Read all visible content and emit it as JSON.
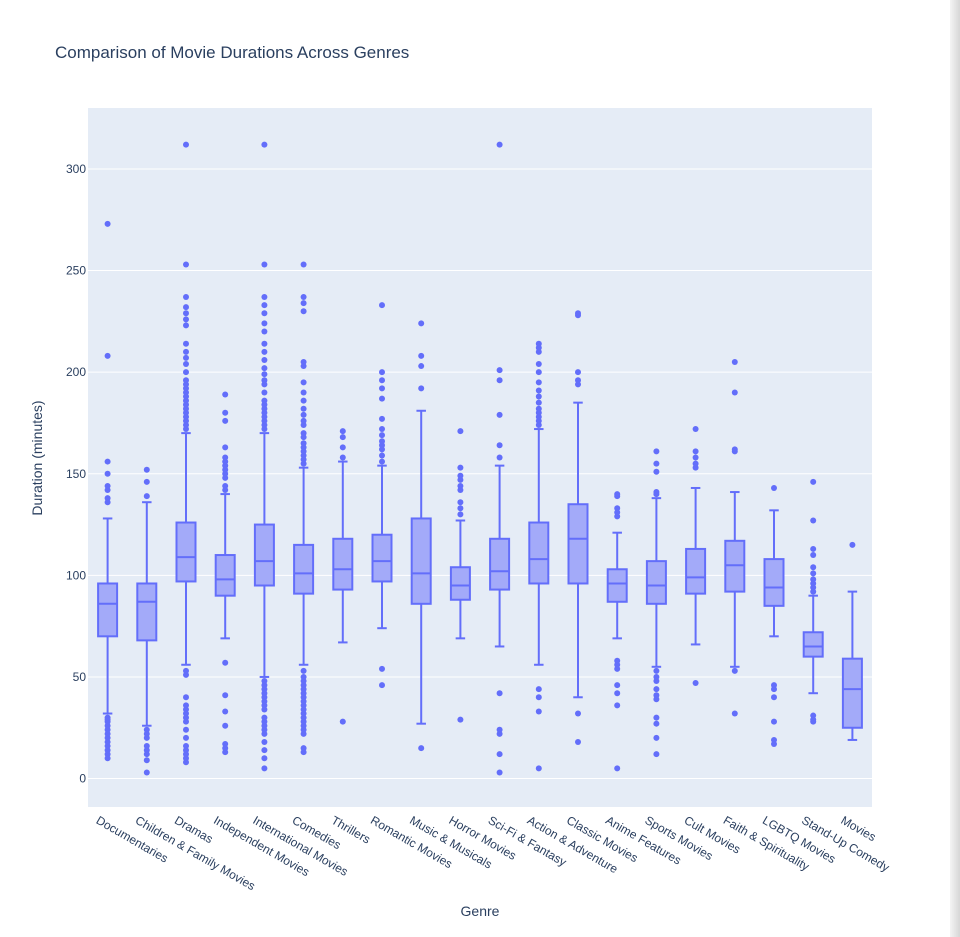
{
  "chart_data": {
    "type": "box",
    "title": "Comparison of Movie Durations Across Genres",
    "xlabel": "Genre",
    "ylabel": "Duration (minutes)",
    "ylim": [
      -14,
      330
    ],
    "yticks": [
      0,
      50,
      100,
      150,
      200,
      250,
      300
    ],
    "grid": true,
    "colors": {
      "box": "#636efa",
      "box_fill": "#a3aaf9",
      "plot_bg": "#e5ecf6",
      "grid": "#ffffff",
      "text": "#2a3f5f"
    },
    "categories": [
      "Documentaries",
      "Children & Family Movies",
      "Dramas",
      "Independent Movies",
      "International Movies",
      "Comedies",
      "Thrillers",
      "Romantic Movies",
      "Music & Musicals",
      "Horror Movies",
      "Sci-Fi & Fantasy",
      "Action & Adventure",
      "Classic Movies",
      "Anime Features",
      "Sports Movies",
      "Cult Movies",
      "Faith & Spirituality",
      "LGBTQ Movies",
      "Stand-Up Comedy",
      "Movies"
    ],
    "boxes": [
      {
        "q1": 70,
        "median": 86,
        "q3": 96,
        "lower": 32,
        "upper": 128,
        "outliers": [
          10,
          12,
          14,
          16,
          18,
          20,
          22,
          24,
          26,
          28,
          29,
          30,
          136,
          138,
          142,
          144,
          150,
          156,
          208,
          273
        ]
      },
      {
        "q1": 68,
        "median": 87,
        "q3": 96,
        "lower": 26,
        "upper": 136,
        "outliers": [
          3,
          9,
          12,
          14,
          16,
          20,
          22,
          24,
          139,
          146,
          152
        ]
      },
      {
        "q1": 97,
        "median": 109,
        "q3": 126,
        "lower": 56,
        "upper": 170,
        "outliers": [
          8,
          10,
          12,
          14,
          16,
          20,
          24,
          28,
          30,
          32,
          34,
          36,
          40,
          51,
          53,
          172,
          174,
          176,
          178,
          180,
          182,
          184,
          186,
          188,
          190,
          192,
          194,
          196,
          200,
          204,
          207,
          210,
          214,
          223,
          226,
          229,
          232,
          237,
          253,
          312
        ]
      },
      {
        "q1": 90,
        "median": 98,
        "q3": 110,
        "lower": 69,
        "upper": 140,
        "outliers": [
          13,
          15,
          17,
          26,
          33,
          41,
          57,
          142,
          144,
          148,
          150,
          152,
          154,
          156,
          158,
          163,
          176,
          180,
          189
        ]
      },
      {
        "q1": 95,
        "median": 107,
        "q3": 125,
        "lower": 50,
        "upper": 170,
        "outliers": [
          5,
          10,
          14,
          18,
          22,
          24,
          26,
          28,
          30,
          34,
          36,
          38,
          40,
          42,
          44,
          46,
          48,
          172,
          174,
          176,
          178,
          180,
          182,
          184,
          186,
          190,
          194,
          196,
          199,
          202,
          206,
          210,
          214,
          220,
          224,
          229,
          233,
          237,
          253,
          312
        ]
      },
      {
        "q1": 91,
        "median": 101,
        "q3": 115,
        "lower": 56,
        "upper": 153,
        "outliers": [
          13,
          15,
          22,
          24,
          26,
          28,
          30,
          32,
          34,
          36,
          38,
          40,
          42,
          44,
          46,
          48,
          50,
          53,
          155,
          157,
          159,
          161,
          163,
          165,
          168,
          170,
          174,
          176,
          179,
          182,
          186,
          190,
          195,
          203,
          205,
          230,
          234,
          237,
          253
        ]
      },
      {
        "q1": 93,
        "median": 103,
        "q3": 118,
        "lower": 67,
        "upper": 156,
        "outliers": [
          28,
          158,
          163,
          168,
          171
        ]
      },
      {
        "q1": 97,
        "median": 107,
        "q3": 120,
        "lower": 74,
        "upper": 154,
        "outliers": [
          46,
          54,
          156,
          159,
          162,
          164,
          166,
          169,
          172,
          177,
          187,
          192,
          196,
          200,
          233
        ]
      },
      {
        "q1": 86,
        "median": 101,
        "q3": 128,
        "lower": 27,
        "upper": 181,
        "outliers": [
          15,
          192,
          203,
          208,
          224
        ]
      },
      {
        "q1": 88,
        "median": 95,
        "q3": 104,
        "lower": 69,
        "upper": 127,
        "outliers": [
          29,
          130,
          133,
          136,
          142,
          144,
          147,
          149,
          153,
          171
        ]
      },
      {
        "q1": 93,
        "median": 102,
        "q3": 118,
        "lower": 65,
        "upper": 154,
        "outliers": [
          3,
          12,
          22,
          24,
          42,
          158,
          164,
          179,
          196,
          201,
          312
        ]
      },
      {
        "q1": 96,
        "median": 108,
        "q3": 126,
        "lower": 56,
        "upper": 172,
        "outliers": [
          5,
          33,
          40,
          44,
          174,
          176,
          178,
          180,
          182,
          185,
          188,
          191,
          195,
          200,
          204,
          210,
          212,
          214
        ]
      },
      {
        "q1": 96,
        "median": 118,
        "q3": 135,
        "lower": 40,
        "upper": 185,
        "outliers": [
          18,
          32,
          194,
          196,
          200,
          228,
          229
        ]
      },
      {
        "q1": 87,
        "median": 96,
        "q3": 103,
        "lower": 69,
        "upper": 121,
        "outliers": [
          5,
          36,
          42,
          46,
          54,
          56,
          58,
          129,
          131,
          133,
          139,
          140
        ]
      },
      {
        "q1": 86,
        "median": 95,
        "q3": 107,
        "lower": 55,
        "upper": 138,
        "outliers": [
          12,
          20,
          27,
          30,
          39,
          41,
          44,
          48,
          50,
          53,
          140,
          141,
          151,
          155,
          161
        ]
      },
      {
        "q1": 91,
        "median": 99,
        "q3": 113,
        "lower": 66,
        "upper": 143,
        "outliers": [
          47,
          153,
          155,
          158,
          161,
          172
        ]
      },
      {
        "q1": 92,
        "median": 105,
        "q3": 117,
        "lower": 55,
        "upper": 141,
        "outliers": [
          32,
          53,
          161,
          162,
          190,
          205
        ]
      },
      {
        "q1": 85,
        "median": 94,
        "q3": 108,
        "lower": 70,
        "upper": 132,
        "outliers": [
          17,
          19,
          28,
          40,
          44,
          46,
          143
        ]
      },
      {
        "q1": 60,
        "median": 65,
        "q3": 72,
        "lower": 42,
        "upper": 90,
        "outliers": [
          28,
          29,
          31,
          92,
          94,
          96,
          98,
          101,
          104,
          110,
          113,
          127,
          146
        ]
      },
      {
        "q1": 25,
        "median": 44,
        "q3": 59,
        "lower": 19,
        "upper": 92,
        "outliers": [
          115
        ]
      }
    ]
  }
}
